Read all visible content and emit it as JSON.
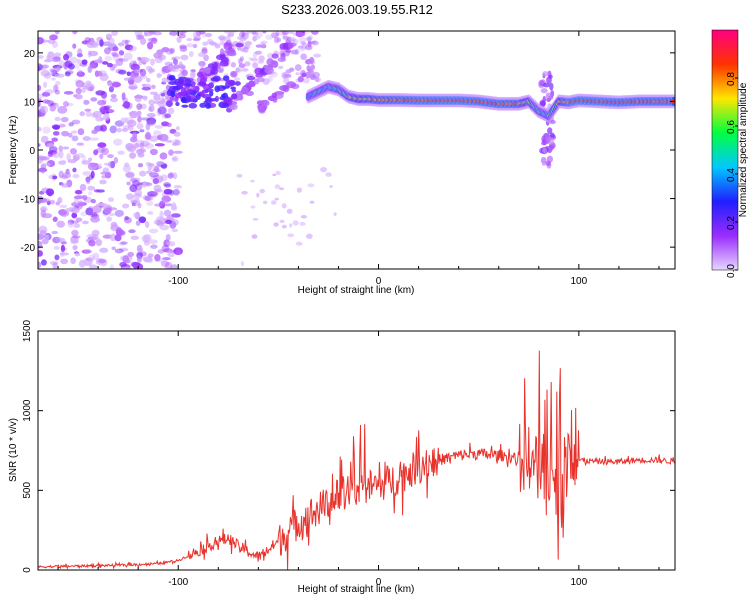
{
  "title": "S233.2026.003.19.55.R12",
  "colors": {
    "snr_line": "#e8322c",
    "axis": "#000000"
  },
  "chart_data": [
    {
      "type": "heatmap",
      "title": "S233.2026.003.19.55.R12",
      "xlabel": "Height of straight line (km)",
      "ylabel": "Frequency (Hz)",
      "xlim": [
        -170,
        148
      ],
      "ylim": [
        -24.5,
        24.5
      ],
      "x_ticks": [
        -100,
        0,
        100
      ],
      "y_ticks": [
        -20,
        -10,
        0,
        10,
        20
      ],
      "colorbar": {
        "label": "Normalized spectral amplitude",
        "range": [
          0,
          1
        ],
        "ticks": [
          0.0,
          0.2,
          0.4,
          0.6,
          0.8
        ],
        "tick_labels": [
          "0.0",
          "0.2",
          "0.4",
          "0.6",
          "0.8"
        ],
        "colormap": [
          "#e6d6ff",
          "#9a2cff",
          "#2020ff",
          "#00c8ff",
          "#00ff40",
          "#ffe600",
          "#ff3300",
          "#ff0080"
        ]
      },
      "dominant_frequency_track": {
        "height_km": [
          -35,
          -30,
          -25,
          -20,
          -15,
          -10,
          -5,
          0,
          10,
          20,
          30,
          40,
          50,
          60,
          70,
          75,
          80,
          85,
          90,
          95,
          100,
          110,
          120,
          130,
          140,
          148
        ],
        "frequency_hz": [
          11,
          12,
          13,
          12.5,
          11,
          10.5,
          10.5,
          10.3,
          10.3,
          10.2,
          10.2,
          10.2,
          10,
          9.5,
          9.5,
          10,
          8,
          7,
          10,
          9.8,
          10.2,
          10,
          9.8,
          10,
          10,
          10
        ],
        "amplitude": [
          0.4,
          0.5,
          0.45,
          0.55,
          0.6,
          0.7,
          0.75,
          0.8,
          0.85,
          0.88,
          0.9,
          0.9,
          0.88,
          0.87,
          0.82,
          0.6,
          0.5,
          0.45,
          0.7,
          0.85,
          0.9,
          0.9,
          0.88,
          0.86,
          0.85,
          0.85
        ]
      }
    },
    {
      "type": "line",
      "xlabel": "Height of straight line (km)",
      "ylabel": "SNR (10 * v/v)",
      "xlim": [
        -170,
        148
      ],
      "ylim": [
        0,
        1500
      ],
      "x_ticks": [
        -100,
        0,
        100
      ],
      "y_ticks": [
        0,
        500,
        1000,
        1500
      ],
      "series": [
        {
          "name": "SNR",
          "x": [
            -170,
            -150,
            -130,
            -110,
            -100,
            -90,
            -80,
            -75,
            -70,
            -60,
            -50,
            -40,
            -30,
            -20,
            -10,
            0,
            10,
            20,
            30,
            40,
            50,
            60,
            70,
            75,
            80,
            85,
            90,
            95,
            100,
            110,
            120,
            130,
            140,
            148
          ],
          "values": [
            20,
            25,
            30,
            40,
            60,
            120,
            180,
            200,
            150,
            80,
            180,
            300,
            380,
            470,
            520,
            530,
            580,
            650,
            690,
            720,
            730,
            720,
            700,
            730,
            650,
            600,
            550,
            700,
            690,
            680,
            680,
            690,
            690,
            680
          ]
        }
      ]
    }
  ]
}
